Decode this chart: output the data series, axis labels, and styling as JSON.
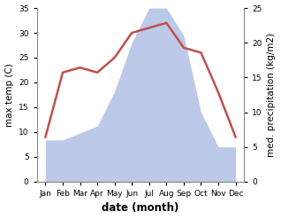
{
  "months": [
    "Jan",
    "Feb",
    "Mar",
    "Apr",
    "May",
    "Jun",
    "Jul",
    "Aug",
    "Sep",
    "Oct",
    "Nov",
    "Dec"
  ],
  "month_x": [
    0,
    1,
    2,
    3,
    4,
    5,
    6,
    7,
    8,
    9,
    10,
    11
  ],
  "temperature": [
    9,
    22,
    23,
    22,
    25,
    30,
    31,
    32,
    27,
    26,
    18,
    9
  ],
  "precipitation": [
    6,
    6,
    7,
    8,
    13,
    20,
    25,
    25,
    21,
    10,
    5,
    5
  ],
  "temp_color": "#c0504d",
  "precip_fill_color": "#bdc9e8",
  "precip_fill_alpha": 1.0,
  "temp_ylim": [
    0,
    35
  ],
  "precip_ylim": [
    0,
    25
  ],
  "temp_yticks": [
    0,
    5,
    10,
    15,
    20,
    25,
    30,
    35
  ],
  "precip_yticks": [
    0,
    5,
    10,
    15,
    20,
    25
  ],
  "xlabel": "date (month)",
  "ylabel_left": "max temp (C)",
  "ylabel_right": "med. precipitation (kg/m2)",
  "line_width": 1.8,
  "bg_color": "#ffffff",
  "tick_fontsize": 6.5,
  "label_fontsize": 7.5,
  "xlabel_fontsize": 8.5
}
